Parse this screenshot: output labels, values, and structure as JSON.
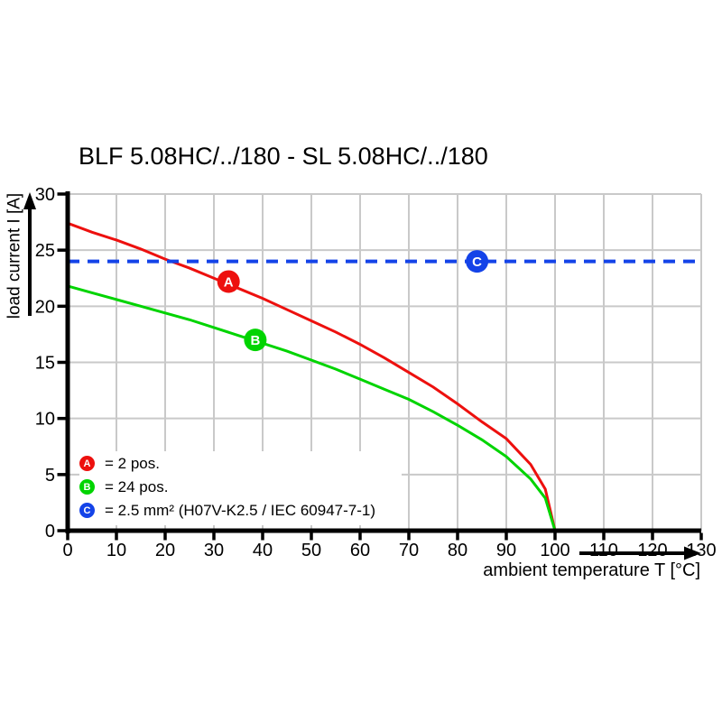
{
  "title": "BLF 5.08HC/../180 - SL 5.08HC/../180",
  "colors": {
    "red": "#ed100e",
    "green": "#00d400",
    "blue": "#1443e8",
    "grid": "#c9c9c9",
    "axis": "#000000",
    "background": "#ffffff"
  },
  "legend": {
    "items": [
      {
        "id": "A",
        "color": "#ed100e",
        "label": "= 2 pos."
      },
      {
        "id": "B",
        "color": "#00d400",
        "label": "= 24 pos."
      },
      {
        "id": "C",
        "color": "#1443e8",
        "label": "= 2.5 mm² (H07V-K2.5 / IEC 60947-7-1)"
      }
    ]
  },
  "chart_data": {
    "type": "line",
    "title": "BLF 5.08HC/../180 - SL 5.08HC/../180",
    "xlabel": "ambient temperature T [°C]",
    "ylabel": "load current I [A]",
    "xlim": [
      0,
      130
    ],
    "ylim": [
      0,
      30
    ],
    "x_ticks": [
      0,
      10,
      20,
      30,
      40,
      50,
      60,
      70,
      80,
      90,
      100,
      110,
      120,
      130
    ],
    "y_ticks": [
      0,
      5,
      10,
      15,
      20,
      25,
      30
    ],
    "grid": true,
    "legend_position": "bottom-left",
    "series": [
      {
        "name": "A = 2 pos.",
        "kind": "derating-curve",
        "color": "#ed100e",
        "dash": false,
        "x": [
          0,
          5,
          10,
          15,
          20,
          25,
          30,
          35,
          40,
          45,
          50,
          55,
          60,
          65,
          70,
          75,
          80,
          85,
          90,
          95,
          98,
          100
        ],
        "y": [
          27.4,
          26.6,
          25.9,
          25.1,
          24.2,
          23.4,
          22.5,
          21.6,
          20.7,
          19.7,
          18.7,
          17.7,
          16.6,
          15.4,
          14.1,
          12.8,
          11.3,
          9.7,
          8.2,
          5.9,
          3.7,
          0
        ],
        "marker": {
          "label": "A",
          "x": 33,
          "y": 22.2
        }
      },
      {
        "name": "B = 24 pos.",
        "kind": "derating-curve",
        "color": "#00d400",
        "dash": false,
        "x": [
          0,
          5,
          10,
          15,
          20,
          25,
          30,
          35,
          40,
          45,
          50,
          55,
          60,
          65,
          70,
          75,
          80,
          85,
          90,
          95,
          98,
          100
        ],
        "y": [
          21.8,
          21.2,
          20.6,
          20.0,
          19.4,
          18.8,
          18.1,
          17.4,
          16.7,
          16.0,
          15.2,
          14.4,
          13.5,
          12.6,
          11.7,
          10.6,
          9.4,
          8.1,
          6.6,
          4.6,
          2.9,
          0
        ],
        "marker": {
          "label": "B",
          "x": 38.5,
          "y": 17
        }
      },
      {
        "name": "C = 2.5 mm² (H07V-K2.5 / IEC 60947-7-1)",
        "kind": "reference-line",
        "color": "#1443e8",
        "dash": true,
        "x": [
          0,
          130
        ],
        "y": [
          24,
          24
        ],
        "marker": {
          "label": "C",
          "x": 84,
          "y": 24
        }
      }
    ]
  }
}
